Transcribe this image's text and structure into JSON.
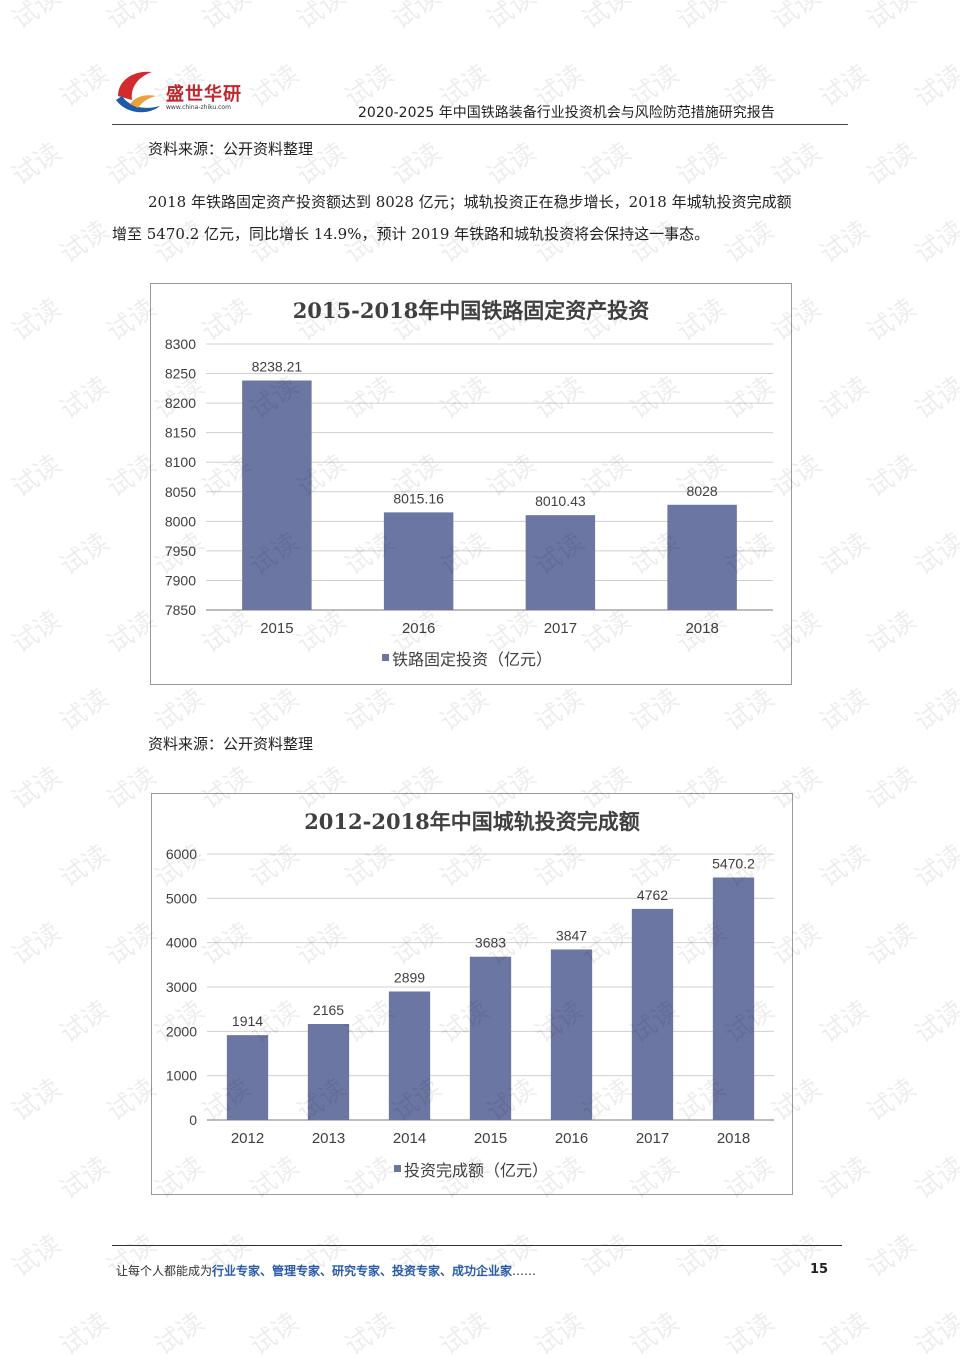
{
  "header": {
    "logo_name": "盛世华研",
    "logo_url": "www.china-zhiku.com",
    "report_title": "2020-2025 年中国铁路装备行业投资机会与风险防范措施研究报告"
  },
  "source_note_1": "资料来源：公开资料整理",
  "paragraph": {
    "line1": "2018 年铁路固定资产投资额达到 8028 亿元；城轨投资正在稳步增长，2018 年城轨投资完成额",
    "line2": "增至 5470.2 亿元，同比增长 14.9%，预计 2019 年铁路和城轨投资将会保持这一事态。"
  },
  "source_note_2": "资料来源：公开资料整理",
  "watermark_text": "试读",
  "chart_data": [
    {
      "type": "bar",
      "title": "2015-2018年中国铁路固定资产投资",
      "categories": [
        "2015",
        "2016",
        "2017",
        "2018"
      ],
      "series": [
        {
          "name": "铁路固定投资（亿元）",
          "values": [
            8238.21,
            8015.16,
            8010.43,
            8028
          ]
        }
      ],
      "value_labels": [
        "8238.21",
        "8015.16",
        "8010.43",
        "8028"
      ],
      "ylim": [
        7850,
        8300
      ],
      "yticks": [
        "7850",
        "7900",
        "7950",
        "8000",
        "8050",
        "8100",
        "8150",
        "8200",
        "8250",
        "8300"
      ],
      "grid": true,
      "legend_position": "bottom",
      "bar_color": "#6b76a2"
    },
    {
      "type": "bar",
      "title": "2012-2018年中国城轨投资完成额",
      "categories": [
        "2012",
        "2013",
        "2014",
        "2015",
        "2016",
        "2017",
        "2018"
      ],
      "series": [
        {
          "name": "投资完成额（亿元）",
          "values": [
            1914,
            2165,
            2899,
            3683,
            3847,
            4762,
            5470.2
          ]
        }
      ],
      "value_labels": [
        "1914",
        "2165",
        "2899",
        "3683",
        "3847",
        "4762",
        "5470.2"
      ],
      "ylim": [
        0,
        6000
      ],
      "yticks": [
        "0",
        "1000",
        "2000",
        "3000",
        "4000",
        "5000",
        "6000"
      ],
      "grid": true,
      "legend_position": "bottom",
      "bar_color": "#6b76a2"
    }
  ],
  "footer": {
    "lead": "让每个人都能成为",
    "highlight": "行业专家、管理专家、研究专家、投资专家、成功企业家",
    "tail": "……",
    "page_number": "15"
  }
}
